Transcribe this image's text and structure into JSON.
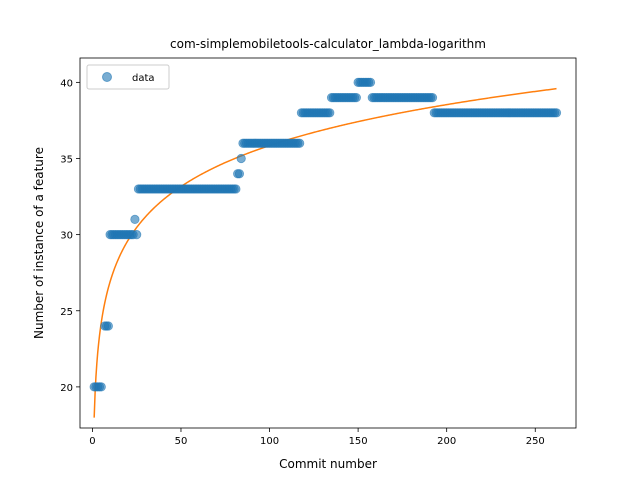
{
  "chart_data": {
    "type": "scatter",
    "title": "com-simplemobiletools-calculator_lambda-logarithm",
    "xlabel": "Commit number",
    "ylabel": "Number of instance of a feature",
    "xlim": [
      -7,
      273
    ],
    "ylim": [
      17.3,
      41.6
    ],
    "xticks": [
      0,
      50,
      100,
      150,
      200,
      250
    ],
    "yticks": [
      20,
      25,
      30,
      35,
      40
    ],
    "grid": false,
    "legend": {
      "position": "top-left",
      "entries": [
        "data"
      ]
    },
    "colors": {
      "data": "#1f77b4",
      "fit": "#ff7f0e"
    },
    "series": [
      {
        "name": "data",
        "segments": [
          {
            "x_start": 1,
            "x_end": 5,
            "y": 20
          },
          {
            "x_start": 7,
            "x_end": 9,
            "y": 24
          },
          {
            "x_start": 10,
            "x_end": 23,
            "y": 30
          },
          {
            "x_start": 24,
            "x_end": 24,
            "y": 31
          },
          {
            "x_start": 25,
            "x_end": 25,
            "y": 30
          },
          {
            "x_start": 26,
            "x_end": 81,
            "y": 33
          },
          {
            "x_start": 82,
            "x_end": 83,
            "y": 34
          },
          {
            "x_start": 84,
            "x_end": 84,
            "y": 35
          },
          {
            "x_start": 85,
            "x_end": 117,
            "y": 36
          },
          {
            "x_start": 118,
            "x_end": 134,
            "y": 38
          },
          {
            "x_start": 135,
            "x_end": 149,
            "y": 39
          },
          {
            "x_start": 150,
            "x_end": 157,
            "y": 40
          },
          {
            "x_start": 158,
            "x_end": 192,
            "y": 39
          },
          {
            "x_start": 193,
            "x_end": 262,
            "y": 38
          }
        ]
      },
      {
        "name": "fit",
        "function": "logarithmic",
        "a": 17.98,
        "b": 3.88,
        "x_range": [
          1,
          262
        ]
      }
    ]
  }
}
